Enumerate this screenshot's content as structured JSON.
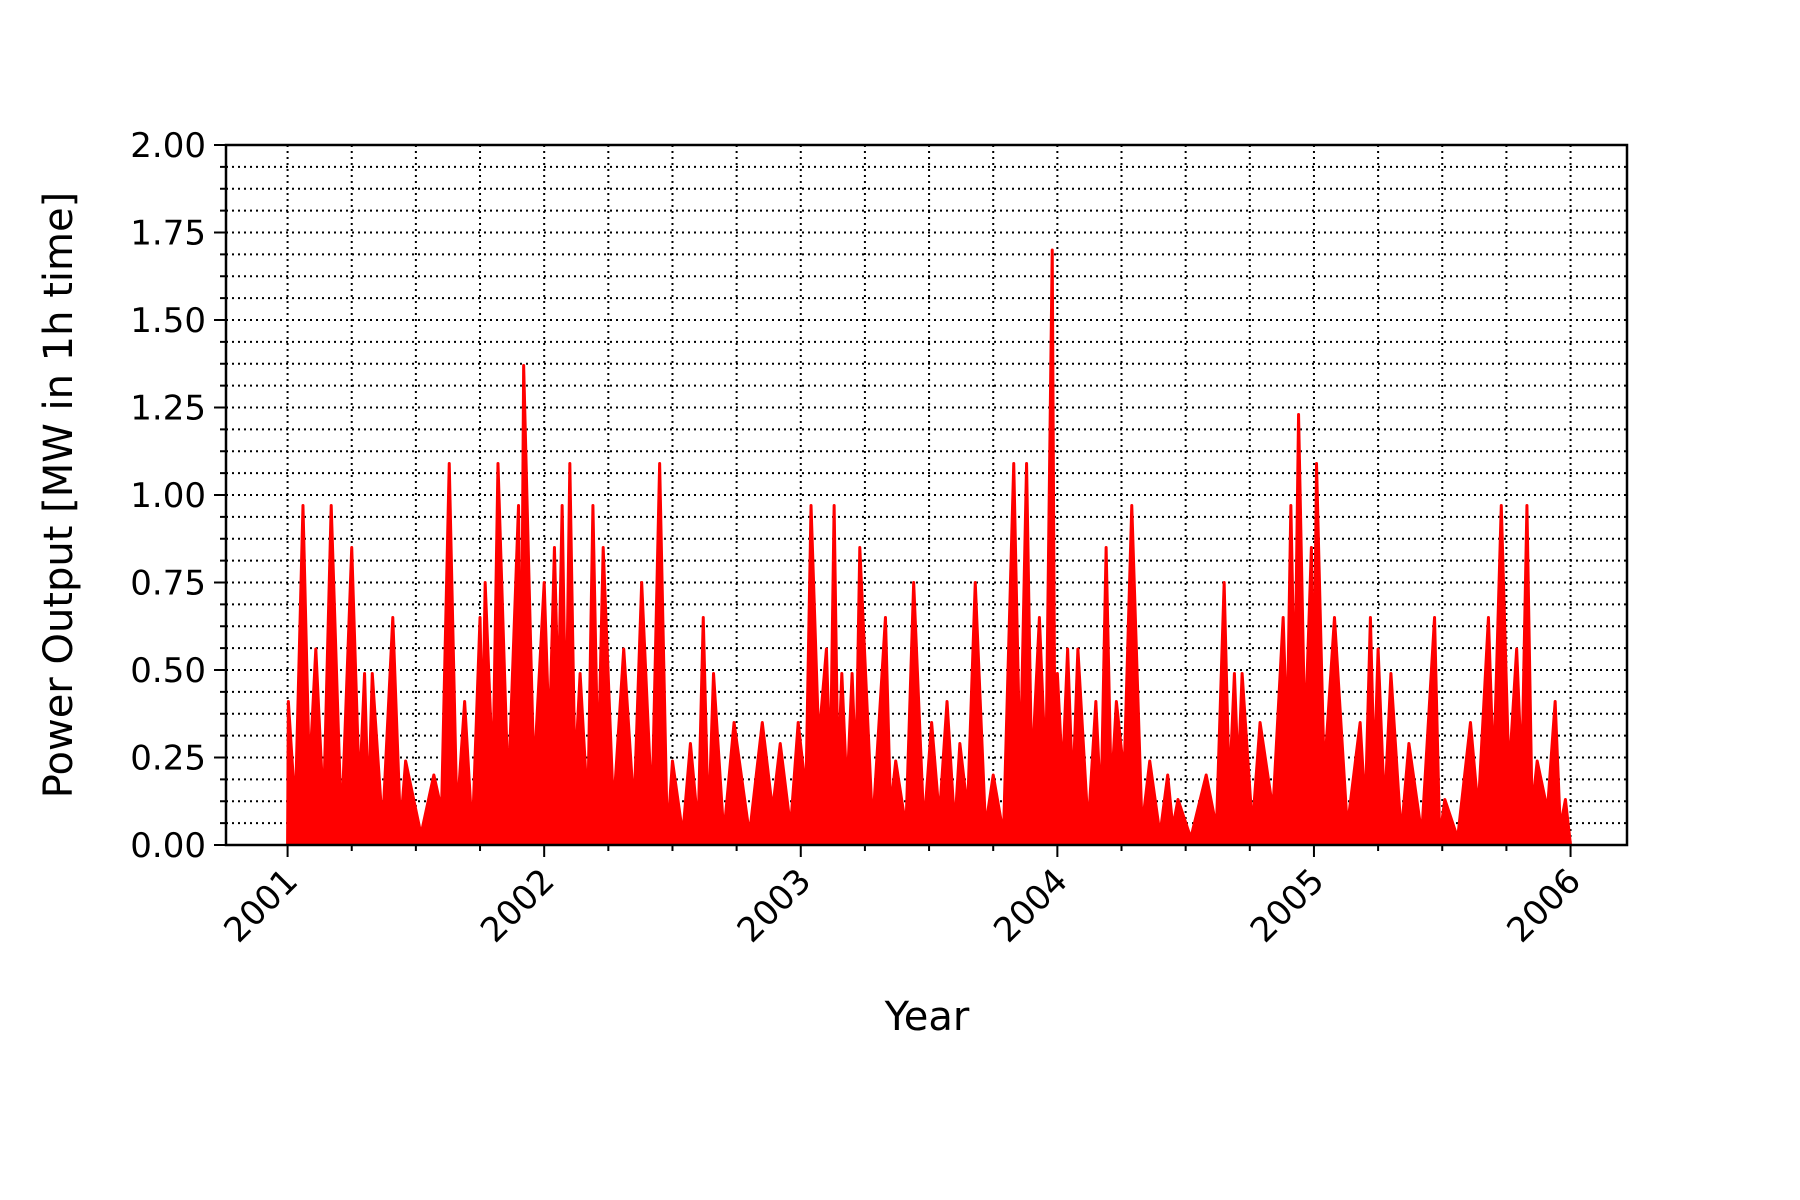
{
  "chart_data": {
    "type": "line",
    "x_label": "Year",
    "y_label": "Power Output [MW in 1h time]",
    "x": [
      2001.0,
      2001.003,
      2001.03,
      2001.06,
      2001.085,
      2001.11,
      2001.14,
      2001.17,
      2001.21,
      2001.25,
      2001.28,
      2001.3,
      2001.315,
      2001.33,
      2001.37,
      2001.41,
      2001.44,
      2001.46,
      2001.52,
      2001.57,
      2001.6,
      2001.63,
      2001.66,
      2001.69,
      2001.72,
      2001.75,
      2001.76,
      2001.77,
      2001.8,
      2001.82,
      2001.86,
      2001.9,
      2001.91,
      2001.92,
      2001.96,
      2002.0,
      2002.02,
      2002.04,
      2002.055,
      2002.07,
      2002.085,
      2002.1,
      2002.12,
      2002.14,
      2002.17,
      2002.19,
      2002.21,
      2002.23,
      2002.27,
      2002.31,
      2002.35,
      2002.38,
      2002.42,
      2002.45,
      2002.48,
      2002.5,
      2002.54,
      2002.57,
      2002.6,
      2002.62,
      2002.64,
      2002.66,
      2002.7,
      2002.74,
      2002.8,
      2002.85,
      2002.89,
      2002.92,
      2002.96,
      2002.99,
      2003.02,
      2003.04,
      2003.07,
      2003.1,
      2003.115,
      2003.13,
      2003.145,
      2003.16,
      2003.18,
      2003.2,
      2003.215,
      2003.23,
      2003.28,
      2003.33,
      2003.35,
      2003.37,
      2003.41,
      2003.44,
      2003.48,
      2003.51,
      2003.54,
      2003.57,
      2003.6,
      2003.62,
      2003.65,
      2003.68,
      2003.72,
      2003.75,
      2003.79,
      2003.83,
      2003.855,
      2003.88,
      2003.9,
      2003.93,
      2003.955,
      2003.98,
      2003.99,
      2004.0,
      2004.02,
      2004.04,
      2004.06,
      2004.08,
      2004.12,
      2004.15,
      2004.17,
      2004.19,
      2004.21,
      2004.23,
      2004.26,
      2004.29,
      2004.33,
      2004.36,
      2004.4,
      2004.43,
      2004.45,
      2004.47,
      2004.52,
      2004.58,
      2004.62,
      2004.65,
      2004.67,
      2004.69,
      2004.705,
      2004.72,
      2004.76,
      2004.79,
      2004.84,
      2004.88,
      2004.895,
      2004.91,
      2004.925,
      2004.94,
      2004.965,
      2004.99,
      2005.0,
      2005.01,
      2005.04,
      2005.08,
      2005.13,
      2005.18,
      2005.2,
      2005.22,
      2005.235,
      2005.25,
      2005.275,
      2005.3,
      2005.34,
      2005.37,
      2005.42,
      2005.47,
      2005.49,
      2005.51,
      2005.56,
      2005.61,
      2005.64,
      2005.68,
      2005.7,
      2005.73,
      2005.76,
      2005.79,
      2005.81,
      2005.83,
      2005.85,
      2005.87,
      2005.91,
      2005.94,
      2005.96,
      2005.98,
      2006.0
    ],
    "series": [
      {
        "color": "#ff0000",
        "values": [
          0.0,
          0.41,
          0.1,
          0.97,
          0.2,
          0.56,
          0.1,
          0.97,
          0.05,
          0.85,
          0.15,
          0.49,
          0.1,
          0.49,
          0.05,
          0.65,
          0.05,
          0.24,
          0.03,
          0.2,
          0.1,
          1.09,
          0.08,
          0.41,
          0.03,
          0.65,
          0.3,
          0.75,
          0.2,
          1.09,
          0.15,
          0.97,
          0.3,
          1.37,
          0.2,
          0.75,
          0.3,
          0.85,
          0.4,
          0.97,
          0.3,
          1.09,
          0.2,
          0.49,
          0.1,
          0.97,
          0.2,
          0.85,
          0.1,
          0.56,
          0.1,
          0.75,
          0.1,
          1.09,
          0.02,
          0.24,
          0.03,
          0.29,
          0.05,
          0.65,
          0.05,
          0.49,
          0.03,
          0.35,
          0.03,
          0.35,
          0.1,
          0.29,
          0.05,
          0.35,
          0.15,
          0.97,
          0.3,
          0.56,
          0.2,
          0.97,
          0.2,
          0.49,
          0.15,
          0.49,
          0.2,
          0.85,
          0.05,
          0.65,
          0.1,
          0.24,
          0.05,
          0.75,
          0.05,
          0.35,
          0.08,
          0.41,
          0.05,
          0.29,
          0.1,
          0.75,
          0.05,
          0.2,
          0.03,
          1.09,
          0.2,
          1.09,
          0.2,
          0.65,
          0.2,
          1.7,
          0.3,
          0.49,
          0.2,
          0.56,
          0.15,
          0.56,
          0.05,
          0.41,
          0.1,
          0.85,
          0.15,
          0.41,
          0.2,
          0.97,
          0.05,
          0.24,
          0.03,
          0.2,
          0.05,
          0.13,
          0.02,
          0.2,
          0.05,
          0.75,
          0.15,
          0.49,
          0.2,
          0.49,
          0.05,
          0.35,
          0.1,
          0.65,
          0.3,
          0.97,
          0.4,
          1.23,
          0.3,
          0.85,
          0.4,
          1.09,
          0.2,
          0.65,
          0.05,
          0.35,
          0.1,
          0.65,
          0.2,
          0.56,
          0.1,
          0.49,
          0.03,
          0.29,
          0.03,
          0.65,
          0.02,
          0.13,
          0.02,
          0.35,
          0.1,
          0.65,
          0.2,
          0.97,
          0.2,
          0.56,
          0.2,
          0.97,
          0.1,
          0.24,
          0.1,
          0.41,
          0.05,
          0.13,
          0.0
        ]
      }
    ],
    "xlim": [
      2000.76,
      2006.22
    ],
    "xticks": [
      2001,
      2002,
      2003,
      2004,
      2005,
      2006
    ],
    "ylim": [
      0,
      2
    ],
    "yticks": [
      {
        "value": 0,
        "label": "0.00"
      },
      {
        "value": 0.25,
        "label": "0.25"
      },
      {
        "value": 0.5,
        "label": "0.50"
      },
      {
        "value": 0.75,
        "label": "0.75"
      },
      {
        "value": 1,
        "label": "1.00"
      },
      {
        "value": 1.25,
        "label": "1.25"
      },
      {
        "value": 1.5,
        "label": "1.50"
      },
      {
        "value": 1.75,
        "label": "1.75"
      },
      {
        "value": 2,
        "label": "2.00"
      }
    ],
    "grid": true,
    "minor_grid": true
  }
}
